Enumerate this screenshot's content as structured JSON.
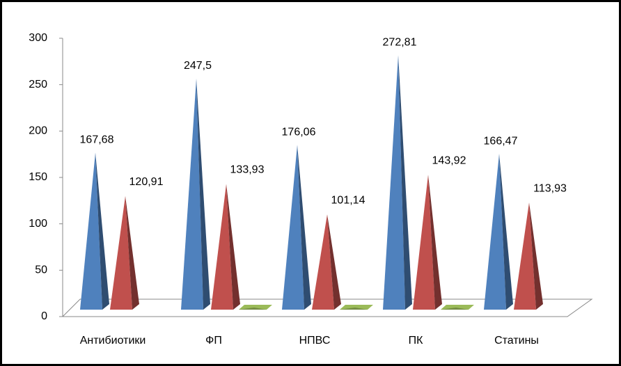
{
  "chart_data": {
    "type": "pyramid",
    "categories": [
      "Антибиотики",
      "ФП",
      "НПВС",
      "ПК",
      "Статины"
    ],
    "series": [
      {
        "color": "#4f81bd",
        "values": [
          167.68,
          247.5,
          176.06,
          272.81,
          166.47
        ],
        "value_labels": [
          "167,68",
          "247,5",
          "176,06",
          "272,81",
          "166,47"
        ]
      },
      {
        "color": "#c0504d",
        "values": [
          120.91,
          133.93,
          101.14,
          143.92,
          113.93
        ],
        "value_labels": [
          "120,91",
          "133,93",
          "101,14",
          "143,92",
          "113,93"
        ]
      },
      {
        "color": "#9bbb59",
        "values": [
          null,
          1,
          1,
          1,
          null
        ]
      }
    ],
    "ylim": [
      0,
      300
    ],
    "yticks": [
      0,
      50,
      100,
      150,
      200,
      250,
      300
    ]
  }
}
